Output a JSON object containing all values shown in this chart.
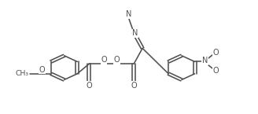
{
  "bg": "#ffffff",
  "lc": "#505050",
  "lw": 1.15,
  "fs": 7.0,
  "figsize": [
    3.28,
    1.45
  ],
  "dpi": 100,
  "xlim": [
    0.0,
    10.5
  ],
  "ylim": [
    3.2,
    9.0
  ],
  "ring_r": 0.62,
  "rcx": 7.4,
  "rcy": 5.55,
  "lcx": 2.6,
  "lcy": 5.55
}
